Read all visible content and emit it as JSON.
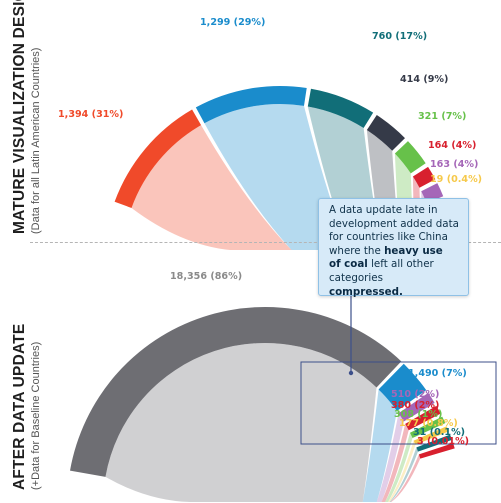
{
  "top_title": {
    "main": "MATURE VISUALIZATION DESIGN",
    "sub": "(Data for all Latin American Countries)"
  },
  "bottom_title": {
    "main": "AFTER DATA UPDATE",
    "sub": "(+Data for Baseline Countries)"
  },
  "callout": {
    "line1": "A data update late in",
    "line2": "development added data",
    "line3": "for countries like China",
    "line4_pre": "where the ",
    "line4_bold": "heavy use",
    "line5_bold": "of coal",
    "line5_post": " left all other",
    "line6_pre": "categories ",
    "line6_bold": "compressed."
  },
  "colors": {
    "red": "#f04a2a",
    "blue": "#1a8ccc",
    "teal": "#116e78",
    "dark": "#353a48",
    "green": "#67c14a",
    "crimson": "#d8202e",
    "purple": "#a567b8",
    "yellow": "#f6c94a",
    "gray": "#6e6e73",
    "label_gray": "#8a8a8a"
  },
  "chart_data": [
    {
      "type": "chord",
      "segments": [
        {
          "label": "1,394 (31%)",
          "value": 1394,
          "color": "#f04a2a"
        },
        {
          "label": "1,299 (29%)",
          "value": 1299,
          "color": "#1a8ccc"
        },
        {
          "label": "760 (17%)",
          "value": 760,
          "color": "#116e78"
        },
        {
          "label": "414 (9%)",
          "value": 414,
          "color": "#353a48"
        },
        {
          "label": "321 (7%)",
          "value": 321,
          "color": "#67c14a"
        },
        {
          "label": "164 (4%)",
          "value": 164,
          "color": "#d8202e"
        },
        {
          "label": "163 (4%)",
          "value": 163,
          "color": "#a567b8"
        },
        {
          "label": "19 (0.4%)",
          "value": 19,
          "color": "#f6c94a"
        }
      ]
    },
    {
      "type": "chord",
      "segments": [
        {
          "label": "18,356 (86%)",
          "value": 18356,
          "color": "#6e6e73"
        },
        {
          "label": "1,490 (7%)",
          "value": 1490,
          "color": "#1a8ccc"
        },
        {
          "label": "510 (2%)",
          "value": 510,
          "color": "#a567b8"
        },
        {
          "label": "380 (2%)",
          "value": 380,
          "color": "#d8202e"
        },
        {
          "label": "308 (1%)",
          "value": 308,
          "color": "#67c14a"
        },
        {
          "label": "177 (0.8%)",
          "value": 177,
          "color": "#f6c94a"
        },
        {
          "label": "31 (0.1%)",
          "value": 31,
          "color": "#116e78"
        },
        {
          "label": "3 (0.01%)",
          "value": 3,
          "color": "#d8202e"
        }
      ]
    }
  ]
}
